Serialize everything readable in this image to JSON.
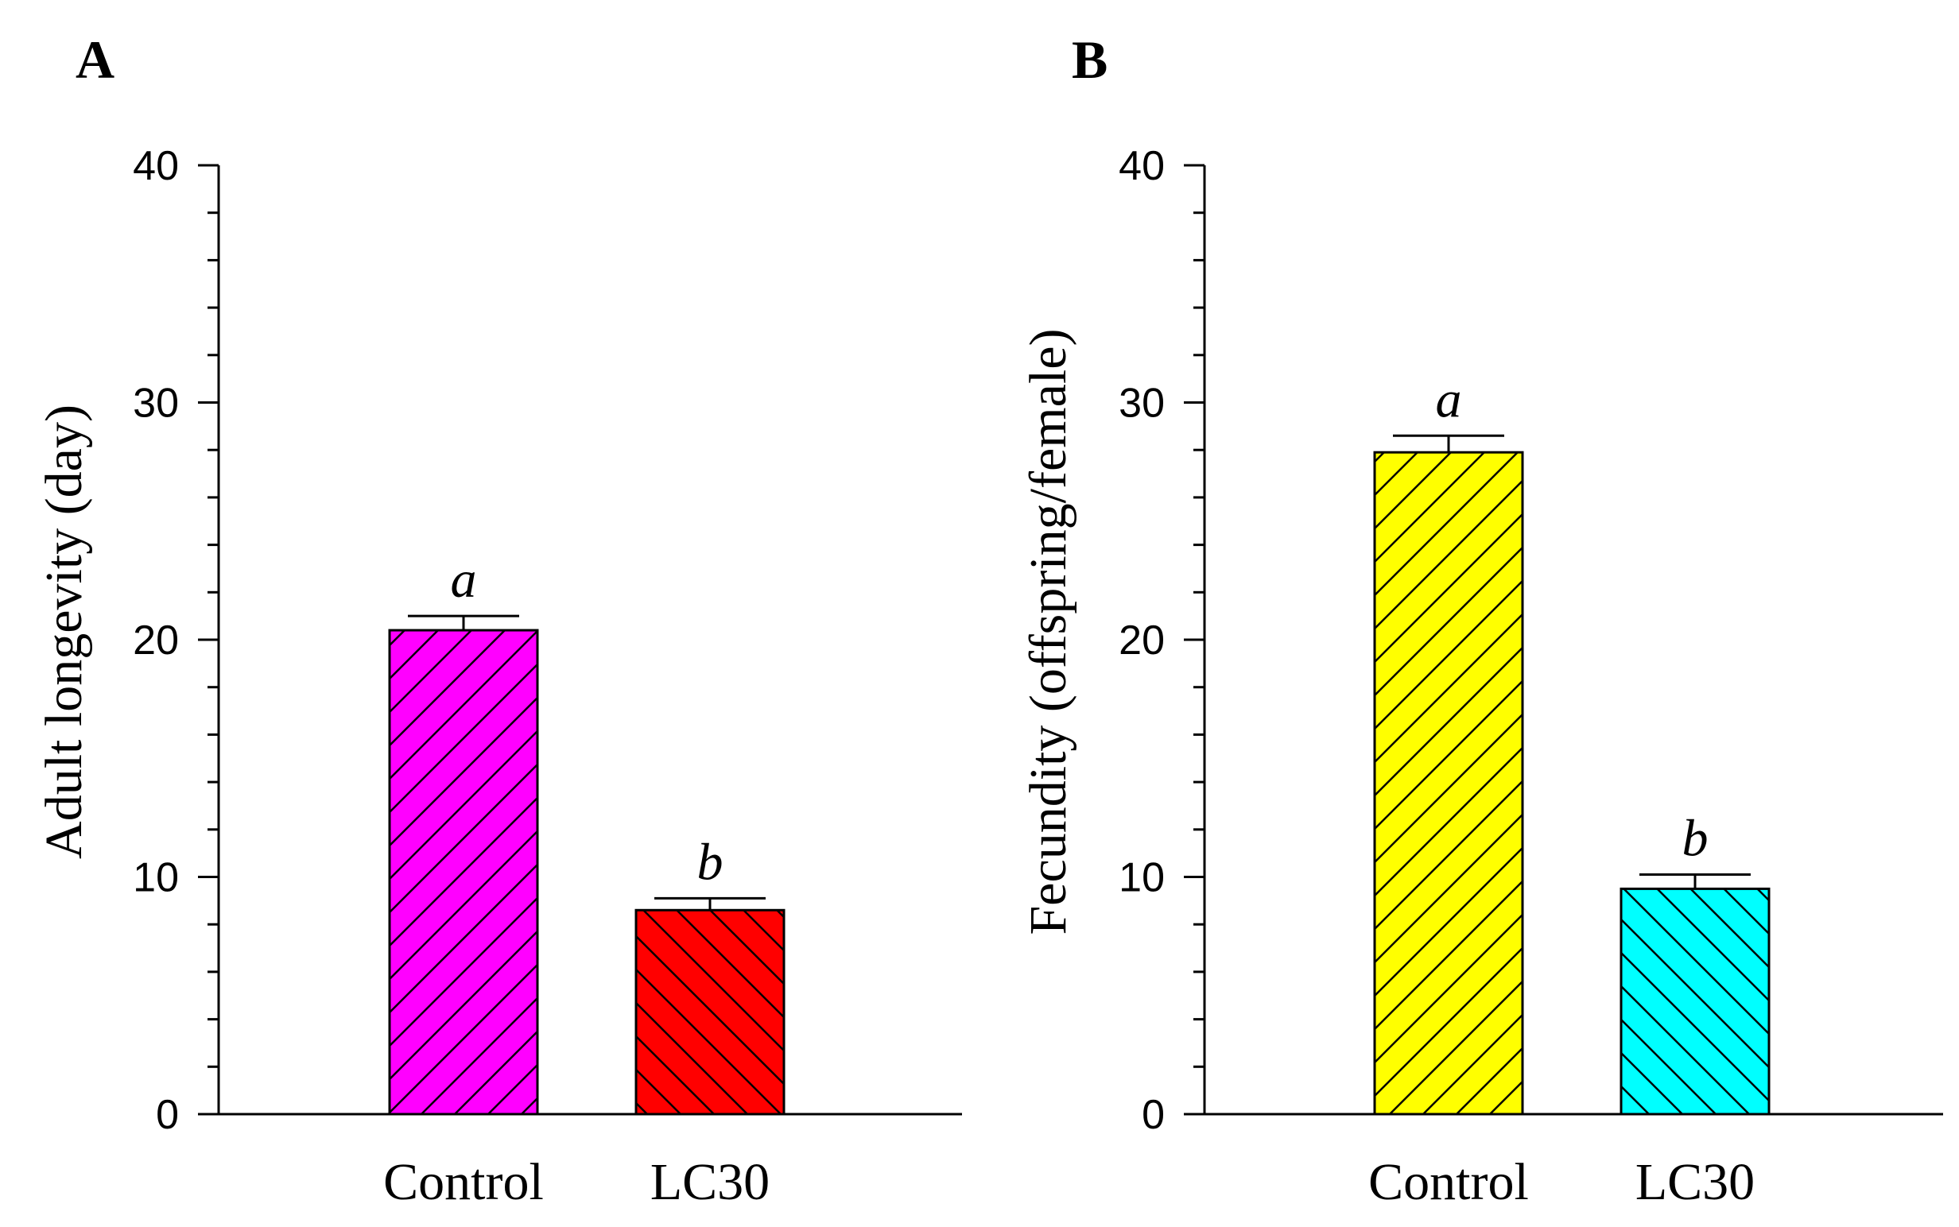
{
  "chart_data": [
    {
      "type": "bar",
      "panel": "A",
      "categories": [
        "Control",
        "LC30"
      ],
      "values": [
        20.4,
        8.6
      ],
      "errors": [
        0.6,
        0.5
      ],
      "significance": [
        "a",
        "b"
      ],
      "colors": [
        "#ff00ff",
        "#ff0000"
      ],
      "hatch": [
        "forward",
        "back"
      ],
      "title": "",
      "xlabel": "",
      "ylabel": "Adult longevity (day)",
      "ylim": [
        0,
        40
      ],
      "yticks": [
        "0",
        "10",
        "20",
        "30",
        "40"
      ]
    },
    {
      "type": "bar",
      "panel": "B",
      "categories": [
        "Control",
        "LC30"
      ],
      "values": [
        27.9,
        9.5
      ],
      "errors": [
        0.7,
        0.6
      ],
      "significance": [
        "a",
        "b"
      ],
      "colors": [
        "#ffff00",
        "#00ffff"
      ],
      "hatch": [
        "forward",
        "back"
      ],
      "title": "",
      "xlabel": "",
      "ylabel": "Fecundity (offspring/female)",
      "ylim": [
        0,
        40
      ],
      "yticks": [
        "0",
        "10",
        "20",
        "30",
        "40"
      ]
    }
  ]
}
